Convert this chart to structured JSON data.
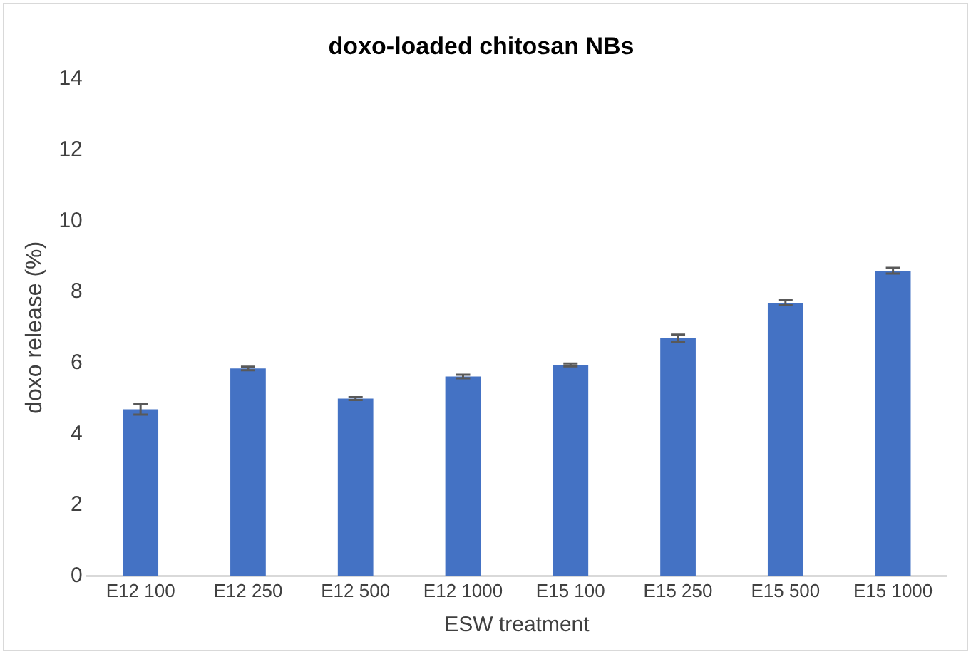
{
  "chart_data": {
    "type": "bar",
    "title": "doxo-loaded chitosan NBs",
    "xlabel": "ESW treatment",
    "ylabel": "doxo release (%)",
    "categories": [
      "E12 100",
      "E12 250",
      "E12 500",
      "E12 1000",
      "E15 100",
      "E15 250",
      "E15 500",
      "E15 1000"
    ],
    "values": [
      4.7,
      5.85,
      5.0,
      5.62,
      5.95,
      6.7,
      7.7,
      8.6
    ],
    "errors": [
      0.15,
      0.05,
      0.04,
      0.05,
      0.04,
      0.1,
      0.07,
      0.08
    ],
    "color": "#4472c4",
    "ylim": [
      0,
      14
    ],
    "yticks": [
      0,
      2,
      4,
      6,
      8,
      10,
      12,
      14
    ],
    "grid": false,
    "legend": false
  }
}
